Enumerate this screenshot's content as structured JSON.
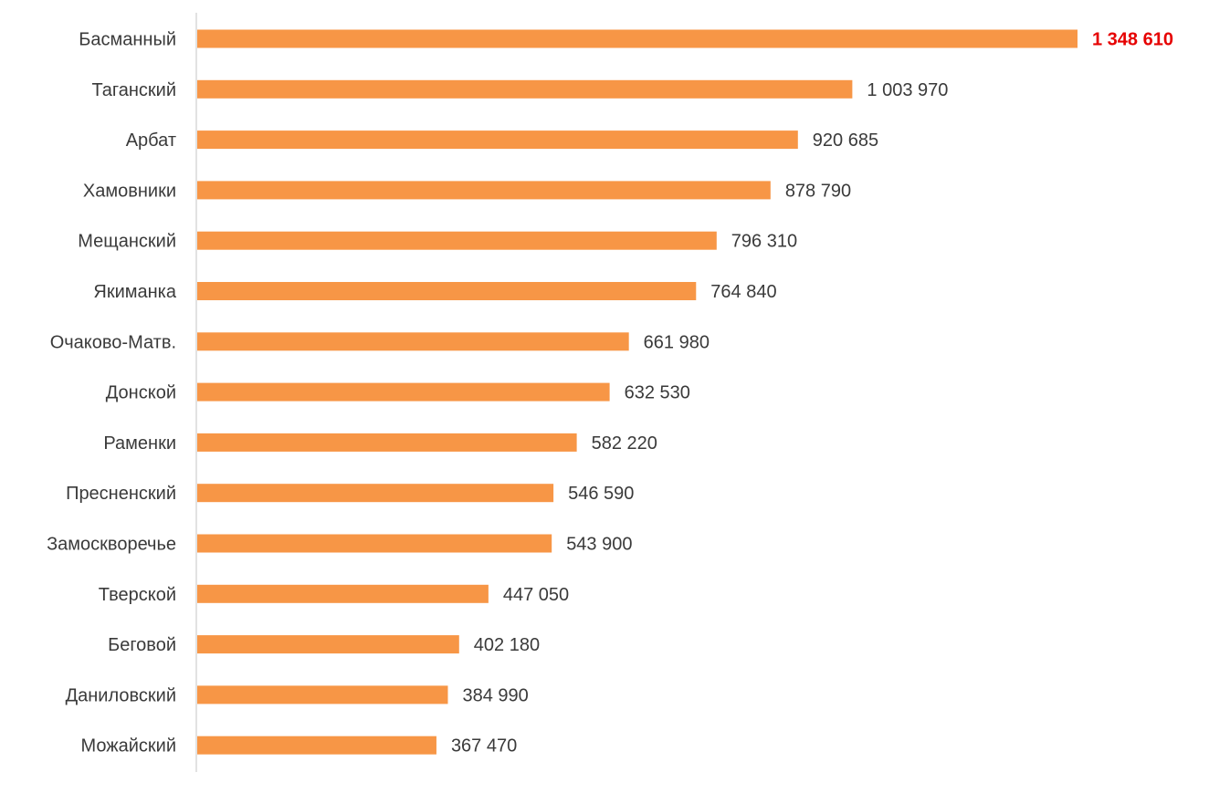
{
  "chart_data": {
    "type": "bar",
    "orientation": "horizontal",
    "categories": [
      "Басманный",
      "Таганский",
      "Арбат",
      "Хамовники",
      "Мещанский",
      "Якиманка",
      "Очаково-Матв.",
      "Донской",
      "Раменки",
      "Пресненский",
      "Замоскворечье",
      "Тверской",
      "Беговой",
      "Даниловский",
      "Можайский"
    ],
    "values": [
      1348610,
      1003970,
      920685,
      878790,
      796310,
      764840,
      661980,
      632530,
      582220,
      546590,
      543900,
      447050,
      402180,
      384990,
      367470
    ],
    "value_labels": [
      "1 348 610",
      "1 003 970",
      "920 685",
      "878 790",
      "796 310",
      "764 840",
      "661 980",
      "632 530",
      "582 220",
      "546 590",
      "543 900",
      "447 050",
      "402 180",
      "384 990",
      "367 470"
    ],
    "highlight_index": 0,
    "xlim": [
      0,
      1348610
    ],
    "grid": false,
    "legend": "none",
    "title": "",
    "xlabel": "",
    "ylabel": ""
  },
  "colors": {
    "bar": "#F79646",
    "axis": "#d9d9d9",
    "label": "#3a3a3a",
    "highlight_label": "#E60000"
  }
}
